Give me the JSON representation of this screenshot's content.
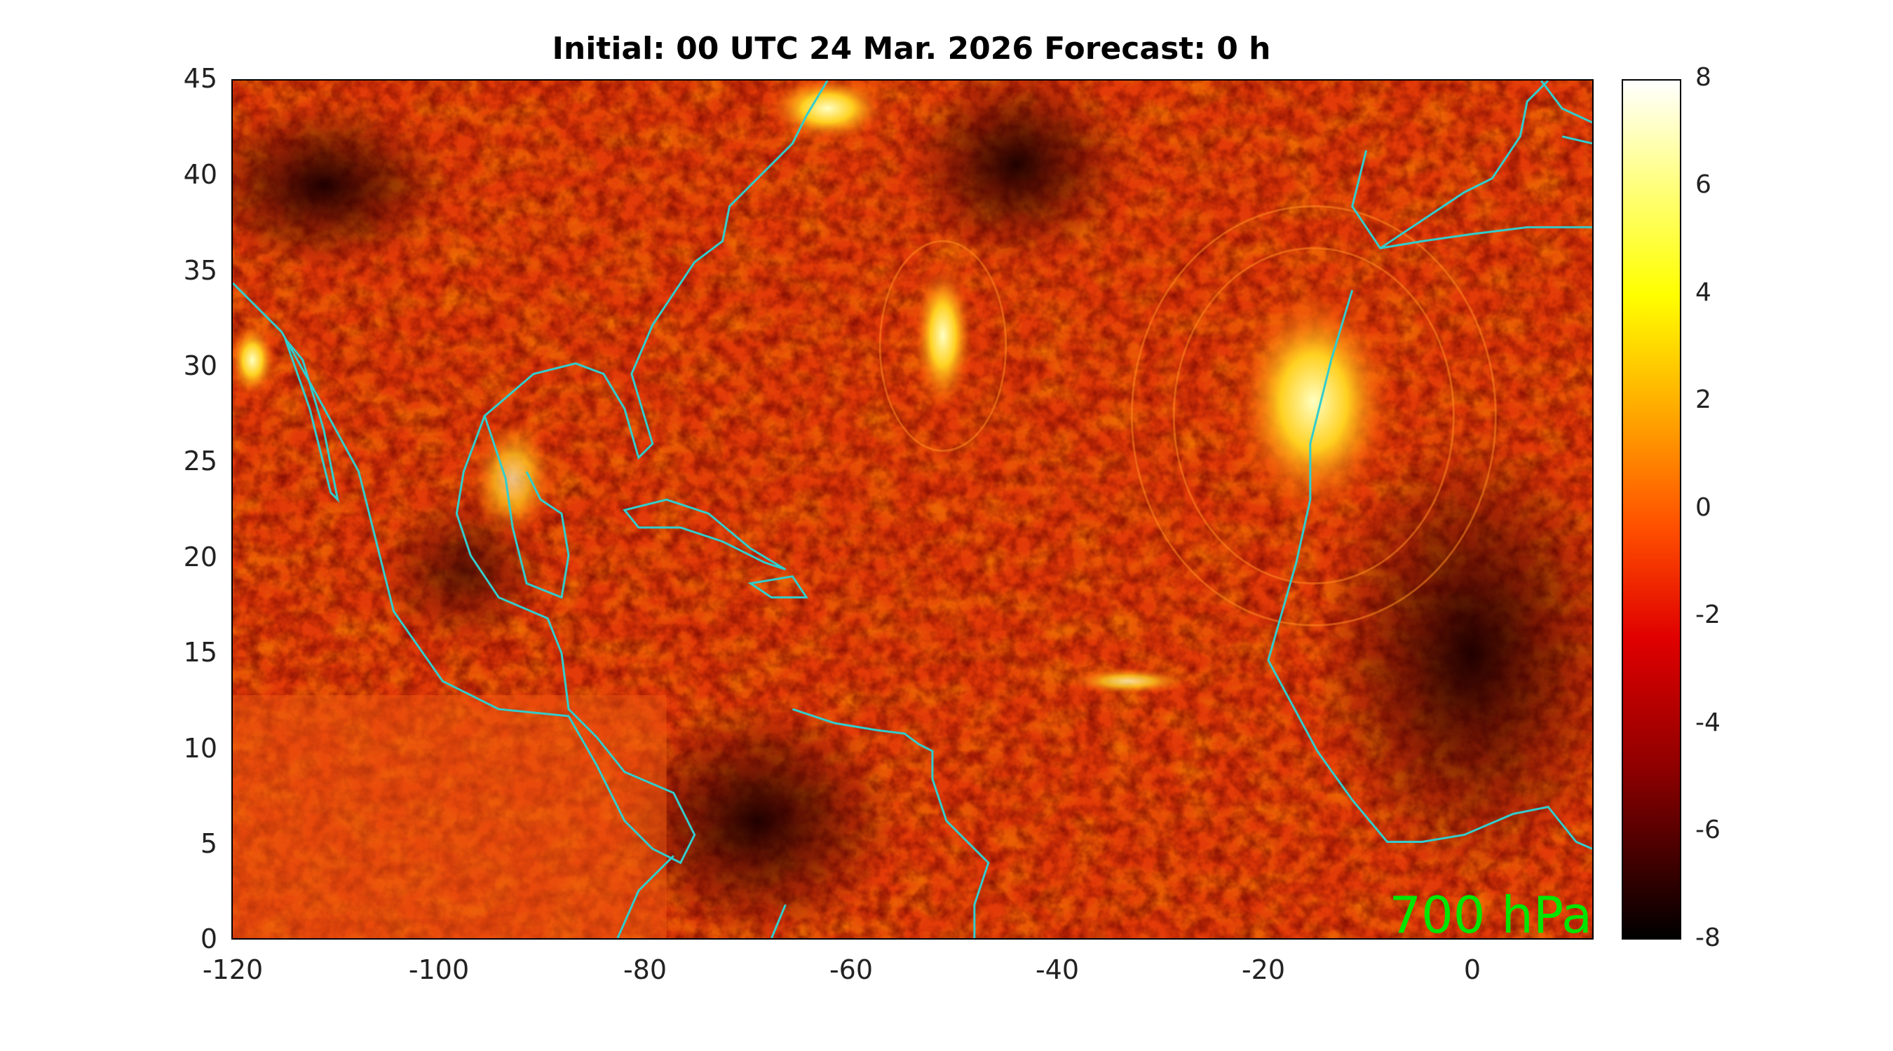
{
  "title": "Initial: 00 UTC 24 Mar. 2026 Forecast: 0 h",
  "level_label": "700 hPa",
  "map": {
    "lon_range": [
      -120,
      12
    ],
    "lat_range": [
      0,
      45
    ],
    "x_ticks": [
      "-120",
      "-100",
      "-80",
      "-60",
      "-40",
      "-20",
      "0"
    ],
    "y_ticks": [
      "0",
      "5",
      "10",
      "15",
      "20",
      "25",
      "30",
      "35",
      "40",
      "45"
    ],
    "coastline_color": "#33cccc"
  },
  "colorbar": {
    "range": [
      -8,
      8
    ],
    "tick_labels": [
      "8",
      "6",
      "4",
      "2",
      "0",
      "-2",
      "-4",
      "-6",
      "-8"
    ],
    "colormap": "hot"
  }
}
